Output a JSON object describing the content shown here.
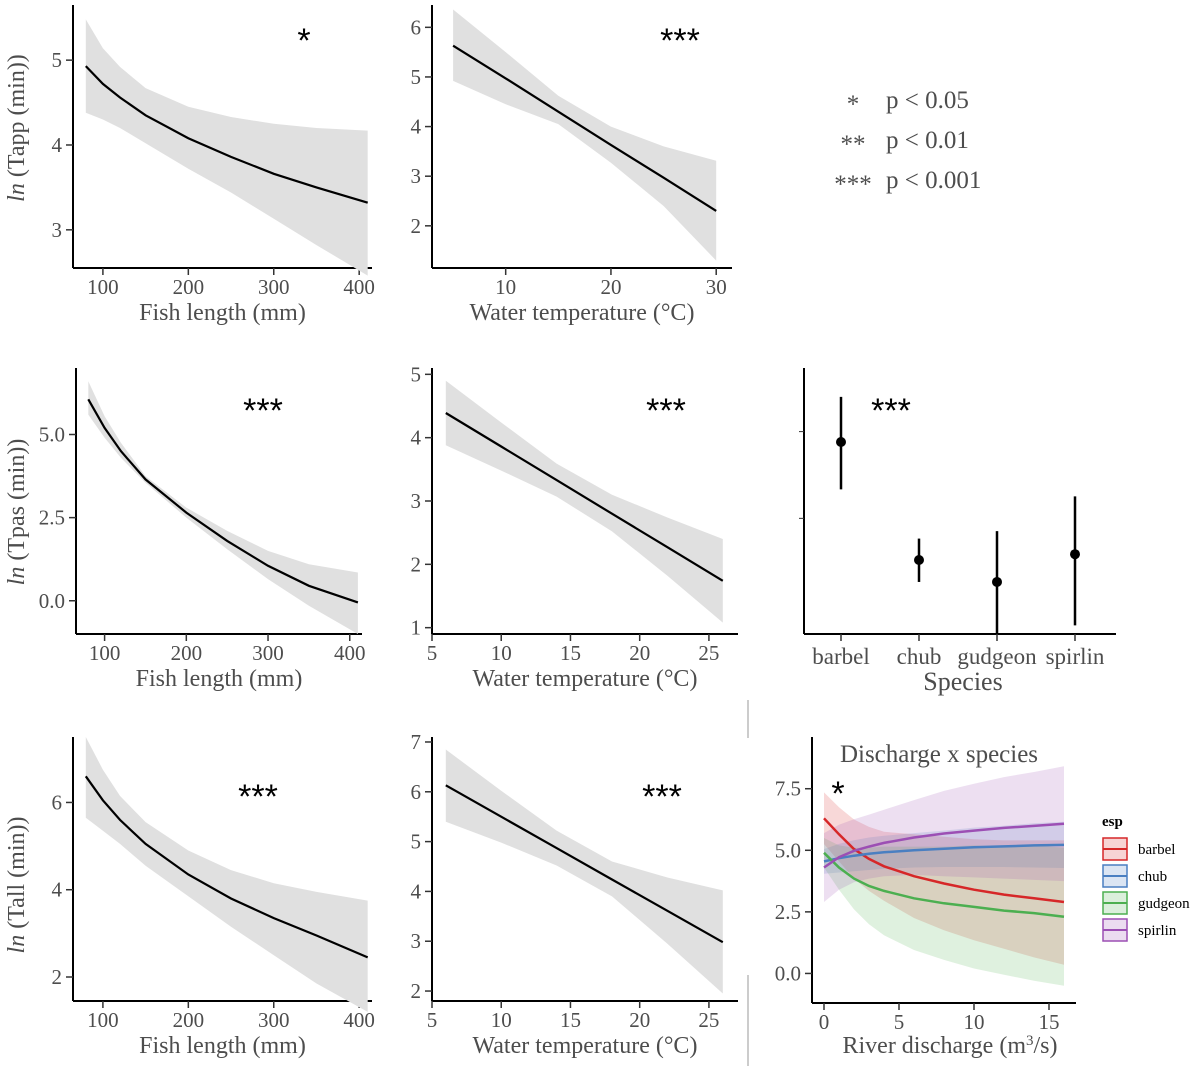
{
  "chart_data": [
    {
      "type": "line",
      "ylabel_italic": "ln",
      "ylabel_rest": " (Tapp (min))",
      "xlabel": "Fish length (mm)",
      "significance": "*",
      "xlim": [
        65,
        415
      ],
      "ylim": [
        2.55,
        5.65
      ],
      "xticks": [
        100,
        200,
        300,
        400
      ],
      "yticks": [
        3,
        4,
        5
      ],
      "ytick_labels": [
        "3",
        "4",
        "5"
      ],
      "x": [
        80,
        100,
        120,
        150,
        200,
        250,
        300,
        350,
        410
      ],
      "fit": [
        4.93,
        4.72,
        4.56,
        4.35,
        4.08,
        3.86,
        3.66,
        3.5,
        3.32
      ],
      "lower": [
        4.38,
        4.3,
        4.2,
        4.02,
        3.72,
        3.44,
        3.13,
        2.82,
        2.46
      ],
      "upper": [
        5.48,
        5.14,
        4.92,
        4.67,
        4.45,
        4.33,
        4.25,
        4.2,
        4.17
      ]
    },
    {
      "type": "line",
      "ylabel_italic": "",
      "ylabel_rest": "",
      "xlabel": "Water temperature (°C)",
      "significance": "***",
      "xlim": [
        3,
        31.5
      ],
      "ylim": [
        1.15,
        6.45
      ],
      "xticks": [
        10,
        20,
        30
      ],
      "yticks": [
        2,
        3,
        4,
        5,
        6
      ],
      "ytick_labels": [
        "2",
        "3",
        "4",
        "5",
        "6"
      ],
      "x": [
        5,
        10,
        15,
        20,
        25,
        30
      ],
      "fit": [
        5.63,
        4.97,
        4.3,
        3.63,
        2.97,
        2.3
      ],
      "lower": [
        4.92,
        4.45,
        4.05,
        3.27,
        2.4,
        1.3
      ],
      "upper": [
        6.36,
        5.5,
        4.62,
        4.0,
        3.6,
        3.31
      ]
    },
    {
      "type": "line",
      "ylabel_italic": "ln",
      "ylabel_rest": " (Tpas (min))",
      "xlabel": "Fish length (mm)",
      "significance": "***",
      "xlim": [
        65,
        415
      ],
      "ylim": [
        -1.0,
        7.0
      ],
      "xticks": [
        100,
        200,
        300,
        400
      ],
      "yticks": [
        0,
        2.5,
        5
      ],
      "ytick_labels": [
        "0.0",
        "2.5",
        "5.0"
      ],
      "x": [
        80,
        100,
        120,
        150,
        200,
        250,
        300,
        350,
        410
      ],
      "fit": [
        6.06,
        5.2,
        4.5,
        3.65,
        2.65,
        1.8,
        1.05,
        0.45,
        -0.05
      ],
      "lower": [
        5.6,
        4.9,
        4.3,
        3.55,
        2.5,
        1.55,
        0.65,
        -0.15,
        -1.0
      ],
      "upper": [
        6.6,
        5.55,
        4.75,
        3.75,
        2.8,
        2.1,
        1.5,
        1.1,
        0.85
      ]
    },
    {
      "type": "line",
      "ylabel_italic": "",
      "ylabel_rest": "",
      "xlabel": "Water temperature (°C)",
      "significance": "***",
      "xlim": [
        5,
        27.1
      ],
      "ylim": [
        0.9,
        5.1
      ],
      "xticks": [
        5,
        10,
        15,
        20,
        25
      ],
      "yticks": [
        1,
        2,
        3,
        4,
        5
      ],
      "ytick_labels": [
        "1",
        "2",
        "3",
        "4",
        "5"
      ],
      "x": [
        6,
        10,
        14,
        18,
        22,
        26
      ],
      "fit": [
        4.39,
        3.86,
        3.33,
        2.8,
        2.27,
        1.74
      ],
      "lower": [
        3.88,
        3.48,
        3.07,
        2.52,
        1.82,
        1.08
      ],
      "upper": [
        4.9,
        4.24,
        3.59,
        3.1,
        2.74,
        2.4
      ]
    },
    {
      "type": "pointrange",
      "xlabel": "Species",
      "significance": "***",
      "categories": [
        "barbel",
        "chub",
        "gudgeon",
        "spirlin"
      ],
      "values": [
        6.32,
        4.28,
        3.9,
        4.38
      ],
      "lower": [
        5.5,
        3.9,
        3.0,
        3.15
      ],
      "upper": [
        7.1,
        4.65,
        4.78,
        5.38
      ],
      "ylim": [
        3.0,
        7.6
      ],
      "yticks": [
        5,
        6.5
      ],
      "ytick_labels": [
        "",
        ""
      ]
    },
    {
      "type": "line",
      "ylabel_italic": "ln",
      "ylabel_rest": " (Tall (min))",
      "xlabel": "Fish length (mm)",
      "significance": "***",
      "xlim": [
        65,
        415
      ],
      "ylim": [
        1.45,
        7.5
      ],
      "xticks": [
        100,
        200,
        300,
        400
      ],
      "yticks": [
        2,
        4,
        6
      ],
      "ytick_labels": [
        "2",
        "4",
        "6"
      ],
      "x": [
        80,
        100,
        120,
        150,
        200,
        250,
        300,
        350,
        410
      ],
      "fit": [
        6.6,
        6.05,
        5.6,
        5.05,
        4.35,
        3.8,
        3.35,
        2.95,
        2.45
      ],
      "lower": [
        5.65,
        5.35,
        5.05,
        4.55,
        3.85,
        3.15,
        2.5,
        1.85,
        1.2
      ],
      "upper": [
        7.5,
        6.75,
        6.15,
        5.55,
        4.9,
        4.45,
        4.15,
        3.95,
        3.75
      ]
    },
    {
      "type": "line",
      "ylabel_italic": "",
      "ylabel_rest": "",
      "xlabel": "Water temperature (°C)",
      "significance": "***",
      "xlim": [
        5,
        27.1
      ],
      "ylim": [
        1.8,
        7.1
      ],
      "xticks": [
        5,
        10,
        15,
        20,
        25
      ],
      "yticks": [
        2,
        3,
        4,
        5,
        6,
        7
      ],
      "ytick_labels": [
        "2",
        "3",
        "4",
        "5",
        "6",
        "7"
      ],
      "x": [
        6,
        10,
        14,
        18,
        22,
        26
      ],
      "fit": [
        6.13,
        5.5,
        4.87,
        4.24,
        3.61,
        2.98
      ],
      "lower": [
        5.4,
        4.98,
        4.52,
        3.9,
        2.95,
        1.95
      ],
      "upper": [
        6.85,
        6.02,
        5.22,
        4.6,
        4.28,
        4.02
      ]
    },
    {
      "type": "line",
      "title": "Discharge x species",
      "xlabel_prefix": "River discharge (m",
      "xlabel_sup": "3",
      "xlabel_suffix": "/s)",
      "significance": "*",
      "xlim": [
        -0.8,
        16.8
      ],
      "ylim": [
        -1.2,
        9.6
      ],
      "xticks": [
        0,
        5,
        10,
        15
      ],
      "yticks": [
        0,
        2.5,
        5,
        7.5
      ],
      "ytick_labels": [
        "0.0",
        "2.5",
        "5.0",
        "7.5"
      ],
      "legend_title": "esp",
      "x": [
        0,
        1,
        2,
        3,
        4,
        6,
        8,
        10,
        12,
        14,
        16
      ],
      "series": [
        {
          "name": "barbel",
          "color": "#d62728",
          "fit": [
            6.3,
            5.65,
            5.05,
            4.65,
            4.35,
            3.95,
            3.65,
            3.4,
            3.2,
            3.05,
            2.9
          ],
          "lower": [
            5.25,
            4.55,
            3.85,
            3.35,
            2.95,
            2.25,
            1.75,
            1.35,
            1.0,
            0.65,
            0.35
          ],
          "upper": [
            7.35,
            6.75,
            6.25,
            5.95,
            5.75,
            5.65,
            5.55,
            5.45,
            5.4,
            5.4,
            5.4
          ]
        },
        {
          "name": "chub",
          "color": "#4a7fc1",
          "fit": [
            4.55,
            4.68,
            4.78,
            4.86,
            4.92,
            5.0,
            5.06,
            5.12,
            5.16,
            5.2,
            5.22
          ],
          "lower": [
            4.05,
            4.1,
            4.15,
            4.2,
            4.25,
            4.3,
            4.32,
            4.32,
            4.32,
            4.3,
            4.28
          ],
          "upper": [
            5.05,
            5.26,
            5.41,
            5.52,
            5.59,
            5.7,
            5.8,
            5.92,
            6.0,
            6.1,
            6.16
          ]
        },
        {
          "name": "gudgeon",
          "color": "#4caf50",
          "fit": [
            4.9,
            4.3,
            3.85,
            3.55,
            3.35,
            3.05,
            2.85,
            2.7,
            2.55,
            2.45,
            2.3
          ],
          "lower": [
            4.3,
            3.4,
            2.6,
            2.0,
            1.55,
            0.95,
            0.55,
            0.2,
            -0.05,
            -0.3,
            -0.5
          ],
          "upper": [
            5.5,
            5.2,
            5.1,
            5.1,
            5.15,
            5.15,
            5.15,
            5.2,
            5.15,
            5.2,
            5.1
          ]
        },
        {
          "name": "spirlin",
          "color": "#9c4fb4",
          "fit": [
            4.3,
            4.72,
            4.98,
            5.15,
            5.3,
            5.52,
            5.68,
            5.8,
            5.91,
            5.99,
            6.08
          ],
          "lower": [
            2.9,
            3.4,
            3.7,
            3.85,
            3.95,
            4.0,
            3.95,
            3.9,
            3.85,
            3.8,
            3.75
          ],
          "upper": [
            5.7,
            6.04,
            6.26,
            6.45,
            6.65,
            7.04,
            7.41,
            7.7,
            7.97,
            8.18,
            8.41
          ]
        }
      ]
    }
  ],
  "significance_key": [
    {
      "symbol": "*",
      "text": "p < 0.05"
    },
    {
      "symbol": "**",
      "text": "p < 0.01"
    },
    {
      "symbol": "***",
      "text": "p < 0.001"
    }
  ]
}
